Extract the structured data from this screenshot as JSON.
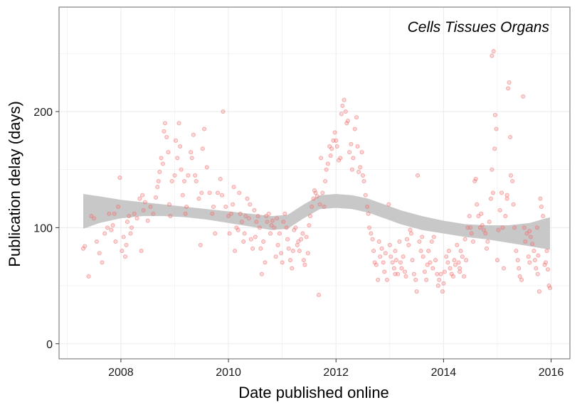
{
  "chart_data": {
    "type": "scatter",
    "title": "",
    "annotation": "Cells Tissues Organs",
    "xlabel": "Date published online",
    "ylabel": "Publication delay (days)",
    "xlim": [
      2006.85,
      2016.35
    ],
    "ylim": [
      -13,
      290
    ],
    "xticks": [
      2008,
      2010,
      2012,
      2014,
      2016
    ],
    "xtick_labels": [
      "2008",
      "2010",
      "2012",
      "2014",
      "2016"
    ],
    "yticks": [
      0,
      100,
      200
    ],
    "ytick_labels": [
      "0",
      "100",
      "200"
    ],
    "grid": true,
    "legend": "none",
    "colors": {
      "points": "#f07070",
      "band": "#c8c8c8",
      "gridline": "#ececec",
      "panel_border": "#8c8c8c"
    },
    "points": [
      [
        2007.3,
        82
      ],
      [
        2007.33,
        84
      ],
      [
        2007.4,
        58
      ],
      [
        2007.45,
        110
      ],
      [
        2007.5,
        108
      ],
      [
        2007.55,
        88
      ],
      [
        2007.6,
        78
      ],
      [
        2007.65,
        70
      ],
      [
        2007.7,
        95
      ],
      [
        2007.75,
        100
      ],
      [
        2007.78,
        112
      ],
      [
        2007.82,
        98
      ],
      [
        2007.85,
        102
      ],
      [
        2007.88,
        112
      ],
      [
        2007.9,
        88
      ],
      [
        2007.95,
        118
      ],
      [
        2007.98,
        143
      ],
      [
        2008.02,
        80
      ],
      [
        2008.05,
        92
      ],
      [
        2008.08,
        75
      ],
      [
        2008.1,
        85
      ],
      [
        2008.12,
        105
      ],
      [
        2008.15,
        110
      ],
      [
        2008.18,
        95
      ],
      [
        2008.2,
        100
      ],
      [
        2008.25,
        112
      ],
      [
        2008.3,
        108
      ],
      [
        2008.35,
        125
      ],
      [
        2008.38,
        80
      ],
      [
        2008.4,
        128
      ],
      [
        2008.42,
        115
      ],
      [
        2008.45,
        122
      ],
      [
        2008.5,
        106
      ],
      [
        2008.55,
        118
      ],
      [
        2008.6,
        112
      ],
      [
        2008.65,
        126
      ],
      [
        2008.68,
        135
      ],
      [
        2008.7,
        140
      ],
      [
        2008.72,
        148
      ],
      [
        2008.75,
        160
      ],
      [
        2008.78,
        155
      ],
      [
        2008.8,
        183
      ],
      [
        2008.82,
        190
      ],
      [
        2008.85,
        178
      ],
      [
        2008.88,
        165
      ],
      [
        2008.9,
        120
      ],
      [
        2008.92,
        110
      ],
      [
        2008.95,
        140
      ],
      [
        2009.0,
        145
      ],
      [
        2009.02,
        175
      ],
      [
        2009.05,
        160
      ],
      [
        2009.08,
        190
      ],
      [
        2009.1,
        170
      ],
      [
        2009.12,
        150
      ],
      [
        2009.15,
        128
      ],
      [
        2009.18,
        140
      ],
      [
        2009.2,
        112
      ],
      [
        2009.22,
        118
      ],
      [
        2009.25,
        145
      ],
      [
        2009.3,
        165
      ],
      [
        2009.32,
        160
      ],
      [
        2009.35,
        180
      ],
      [
        2009.38,
        145
      ],
      [
        2009.4,
        140
      ],
      [
        2009.45,
        125
      ],
      [
        2009.48,
        85
      ],
      [
        2009.5,
        130
      ],
      [
        2009.52,
        168
      ],
      [
        2009.55,
        185
      ],
      [
        2009.6,
        152
      ],
      [
        2009.65,
        130
      ],
      [
        2009.7,
        112
      ],
      [
        2009.72,
        118
      ],
      [
        2009.75,
        95
      ],
      [
        2009.8,
        130
      ],
      [
        2009.85,
        142
      ],
      [
        2009.88,
        128
      ],
      [
        2009.9,
        200
      ],
      [
        2009.95,
        118
      ],
      [
        2010.0,
        110
      ],
      [
        2010.02,
        95
      ],
      [
        2010.05,
        112
      ],
      [
        2010.08,
        120
      ],
      [
        2010.1,
        135
      ],
      [
        2010.12,
        80
      ],
      [
        2010.15,
        100
      ],
      [
        2010.18,
        98
      ],
      [
        2010.2,
        130
      ],
      [
        2010.22,
        112
      ],
      [
        2010.25,
        105
      ],
      [
        2010.28,
        88
      ],
      [
        2010.3,
        95
      ],
      [
        2010.32,
        110
      ],
      [
        2010.35,
        125
      ],
      [
        2010.38,
        108
      ],
      [
        2010.4,
        120
      ],
      [
        2010.42,
        90
      ],
      [
        2010.45,
        82
      ],
      [
        2010.48,
        115
      ],
      [
        2010.5,
        92
      ],
      [
        2010.52,
        105
      ],
      [
        2010.55,
        110
      ],
      [
        2010.58,
        100
      ],
      [
        2010.6,
        82
      ],
      [
        2010.62,
        60
      ],
      [
        2010.65,
        88
      ],
      [
        2010.68,
        70
      ],
      [
        2010.7,
        110
      ],
      [
        2010.72,
        105
      ],
      [
        2010.75,
        112
      ],
      [
        2010.78,
        95
      ],
      [
        2010.8,
        102
      ],
      [
        2010.82,
        106
      ],
      [
        2010.85,
        100
      ],
      [
        2010.88,
        75
      ],
      [
        2010.9,
        108
      ],
      [
        2010.92,
        85
      ],
      [
        2010.95,
        95
      ],
      [
        2010.98,
        78
      ],
      [
        2011.0,
        70
      ],
      [
        2011.02,
        105
      ],
      [
        2011.05,
        112
      ],
      [
        2011.08,
        100
      ],
      [
        2011.1,
        90
      ],
      [
        2011.12,
        82
      ],
      [
        2011.15,
        72
      ],
      [
        2011.18,
        65
      ],
      [
        2011.2,
        80
      ],
      [
        2011.22,
        98
      ],
      [
        2011.25,
        100
      ],
      [
        2011.28,
        85
      ],
      [
        2011.3,
        88
      ],
      [
        2011.32,
        80
      ],
      [
        2011.35,
        90
      ],
      [
        2011.38,
        95
      ],
      [
        2011.4,
        72
      ],
      [
        2011.42,
        68
      ],
      [
        2011.45,
        92
      ],
      [
        2011.48,
        78
      ],
      [
        2011.5,
        102
      ],
      [
        2011.52,
        110
      ],
      [
        2011.55,
        118
      ],
      [
        2011.58,
        125
      ],
      [
        2011.6,
        132
      ],
      [
        2011.62,
        130
      ],
      [
        2011.65,
        127
      ],
      [
        2011.68,
        42
      ],
      [
        2011.7,
        120
      ],
      [
        2011.72,
        160
      ],
      [
        2011.75,
        130
      ],
      [
        2011.78,
        118
      ],
      [
        2011.8,
        140
      ],
      [
        2011.82,
        150
      ],
      [
        2011.85,
        155
      ],
      [
        2011.88,
        170
      ],
      [
        2011.9,
        162
      ],
      [
        2011.92,
        168
      ],
      [
        2011.95,
        175
      ],
      [
        2011.98,
        182
      ],
      [
        2012.0,
        175
      ],
      [
        2012.02,
        170
      ],
      [
        2012.05,
        158
      ],
      [
        2012.08,
        160
      ],
      [
        2012.1,
        198
      ],
      [
        2012.12,
        205
      ],
      [
        2012.15,
        210
      ],
      [
        2012.18,
        200
      ],
      [
        2012.2,
        190
      ],
      [
        2012.22,
        192
      ],
      [
        2012.25,
        165
      ],
      [
        2012.28,
        172
      ],
      [
        2012.3,
        150
      ],
      [
        2012.32,
        160
      ],
      [
        2012.35,
        185
      ],
      [
        2012.38,
        195
      ],
      [
        2012.4,
        170
      ],
      [
        2012.42,
        148
      ],
      [
        2012.45,
        152
      ],
      [
        2012.48,
        165
      ],
      [
        2012.5,
        145
      ],
      [
        2012.52,
        140
      ],
      [
        2012.55,
        128
      ],
      [
        2012.58,
        118
      ],
      [
        2012.6,
        112
      ],
      [
        2012.62,
        100
      ],
      [
        2012.65,
        95
      ],
      [
        2012.68,
        90
      ],
      [
        2012.7,
        80
      ],
      [
        2012.72,
        70
      ],
      [
        2012.75,
        68
      ],
      [
        2012.78,
        55
      ],
      [
        2012.8,
        88
      ],
      [
        2012.82,
        75
      ],
      [
        2012.85,
        82
      ],
      [
        2012.88,
        70
      ],
      [
        2012.9,
        62
      ],
      [
        2012.92,
        78
      ],
      [
        2012.95,
        55
      ],
      [
        2012.98,
        120
      ],
      [
        2013.0,
        85
      ],
      [
        2013.02,
        75
      ],
      [
        2013.05,
        70
      ],
      [
        2013.08,
        65
      ],
      [
        2013.1,
        80
      ],
      [
        2013.12,
        72
      ],
      [
        2013.15,
        60
      ],
      [
        2013.18,
        88
      ],
      [
        2013.2,
        70
      ],
      [
        2013.22,
        65
      ],
      [
        2013.25,
        75
      ],
      [
        2013.28,
        62
      ],
      [
        2013.3,
        58
      ],
      [
        2013.32,
        90
      ],
      [
        2013.35,
        85
      ],
      [
        2013.38,
        98
      ],
      [
        2013.4,
        95
      ],
      [
        2013.42,
        72
      ],
      [
        2013.45,
        60
      ],
      [
        2013.48,
        55
      ],
      [
        2013.5,
        45
      ],
      [
        2013.52,
        145
      ],
      [
        2013.55,
        88
      ],
      [
        2013.58,
        80
      ],
      [
        2013.6,
        92
      ],
      [
        2013.62,
        75
      ],
      [
        2013.65,
        62
      ],
      [
        2013.68,
        55
      ],
      [
        2013.7,
        68
      ],
      [
        2013.72,
        80
      ],
      [
        2013.75,
        70
      ],
      [
        2013.78,
        88
      ],
      [
        2013.8,
        65
      ],
      [
        2013.82,
        92
      ],
      [
        2013.85,
        72
      ],
      [
        2013.88,
        60
      ],
      [
        2013.9,
        50
      ],
      [
        2013.92,
        55
      ],
      [
        2013.95,
        60
      ],
      [
        2013.98,
        45
      ],
      [
        2014.0,
        52
      ],
      [
        2014.02,
        62
      ],
      [
        2014.05,
        75
      ],
      [
        2014.08,
        70
      ],
      [
        2014.1,
        80
      ],
      [
        2014.12,
        65
      ],
      [
        2014.15,
        60
      ],
      [
        2014.18,
        58
      ],
      [
        2014.2,
        72
      ],
      [
        2014.22,
        68
      ],
      [
        2014.25,
        85
      ],
      [
        2014.28,
        70
      ],
      [
        2014.3,
        65
      ],
      [
        2014.32,
        80
      ],
      [
        2014.35,
        75
      ],
      [
        2014.38,
        58
      ],
      [
        2014.4,
        90
      ],
      [
        2014.42,
        72
      ],
      [
        2014.45,
        100
      ],
      [
        2014.48,
        110
      ],
      [
        2014.5,
        100
      ],
      [
        2014.52,
        95
      ],
      [
        2014.55,
        88
      ],
      [
        2014.58,
        140
      ],
      [
        2014.6,
        142
      ],
      [
        2014.62,
        120
      ],
      [
        2014.65,
        110
      ],
      [
        2014.68,
        100
      ],
      [
        2014.7,
        112
      ],
      [
        2014.72,
        102
      ],
      [
        2014.75,
        98
      ],
      [
        2014.78,
        95
      ],
      [
        2014.8,
        82
      ],
      [
        2014.82,
        88
      ],
      [
        2014.85,
        105
      ],
      [
        2014.88,
        125
      ],
      [
        2014.9,
        150
      ],
      [
        2014.92,
        130
      ],
      [
        2014.95,
        168
      ],
      [
        2014.98,
        185
      ],
      [
        2014.9,
        248
      ],
      [
        2014.93,
        252
      ],
      [
        2014.96,
        197
      ],
      [
        2015.0,
        72
      ],
      [
        2015.02,
        98
      ],
      [
        2015.05,
        115
      ],
      [
        2015.08,
        130
      ],
      [
        2015.1,
        100
      ],
      [
        2015.12,
        65
      ],
      [
        2015.15,
        110
      ],
      [
        2015.18,
        125
      ],
      [
        2015.2,
        220
      ],
      [
        2015.22,
        225
      ],
      [
        2015.24,
        178
      ],
      [
        2015.25,
        145
      ],
      [
        2015.28,
        140
      ],
      [
        2015.3,
        120
      ],
      [
        2015.32,
        100
      ],
      [
        2015.35,
        80
      ],
      [
        2015.38,
        72
      ],
      [
        2015.4,
        65
      ],
      [
        2015.42,
        58
      ],
      [
        2015.45,
        55
      ],
      [
        2015.48,
        213
      ],
      [
        2015.5,
        100
      ],
      [
        2015.52,
        88
      ],
      [
        2015.55,
        95
      ],
      [
        2015.58,
        75
      ],
      [
        2015.6,
        70
      ],
      [
        2015.62,
        92
      ],
      [
        2015.65,
        86
      ],
      [
        2015.68,
        80
      ],
      [
        2015.7,
        72
      ],
      [
        2015.72,
        65
      ],
      [
        2015.75,
        60
      ],
      [
        2015.78,
        45
      ],
      [
        2015.8,
        125
      ],
      [
        2015.82,
        118
      ],
      [
        2015.85,
        110
      ],
      [
        2015.88,
        68
      ],
      [
        2015.9,
        70
      ],
      [
        2015.92,
        80
      ],
      [
        2015.94,
        64
      ],
      [
        2015.96,
        50
      ],
      [
        2015.98,
        48
      ],
      [
        2015.74,
        100
      ],
      [
        2015.76,
        76
      ],
      [
        2015.6,
        97
      ],
      [
        2015.18,
        128
      ],
      [
        2014.3,
        62
      ],
      [
        2013.1,
        60
      ]
    ],
    "band": {
      "x": [
        2007.3,
        2007.6,
        2008.0,
        2008.4,
        2008.8,
        2009.2,
        2009.6,
        2010.0,
        2010.4,
        2010.8,
        2011.1,
        2011.4,
        2011.7,
        2012.0,
        2012.3,
        2012.6,
        2012.9,
        2013.2,
        2013.6,
        2014.0,
        2014.4,
        2014.8,
        2015.2,
        2015.6,
        2015.98
      ],
      "upper": [
        129,
        127,
        124,
        122,
        120,
        118,
        116,
        114,
        112,
        110,
        111,
        120,
        128,
        129,
        128,
        125,
        120,
        115,
        110,
        106,
        103,
        102,
        102,
        104,
        109
      ],
      "lower": [
        99,
        104,
        108,
        110,
        110,
        109,
        107,
        104,
        101,
        98,
        99,
        108,
        116,
        117,
        116,
        113,
        108,
        103,
        98,
        95,
        92,
        90,
        87,
        84,
        81
      ]
    }
  }
}
